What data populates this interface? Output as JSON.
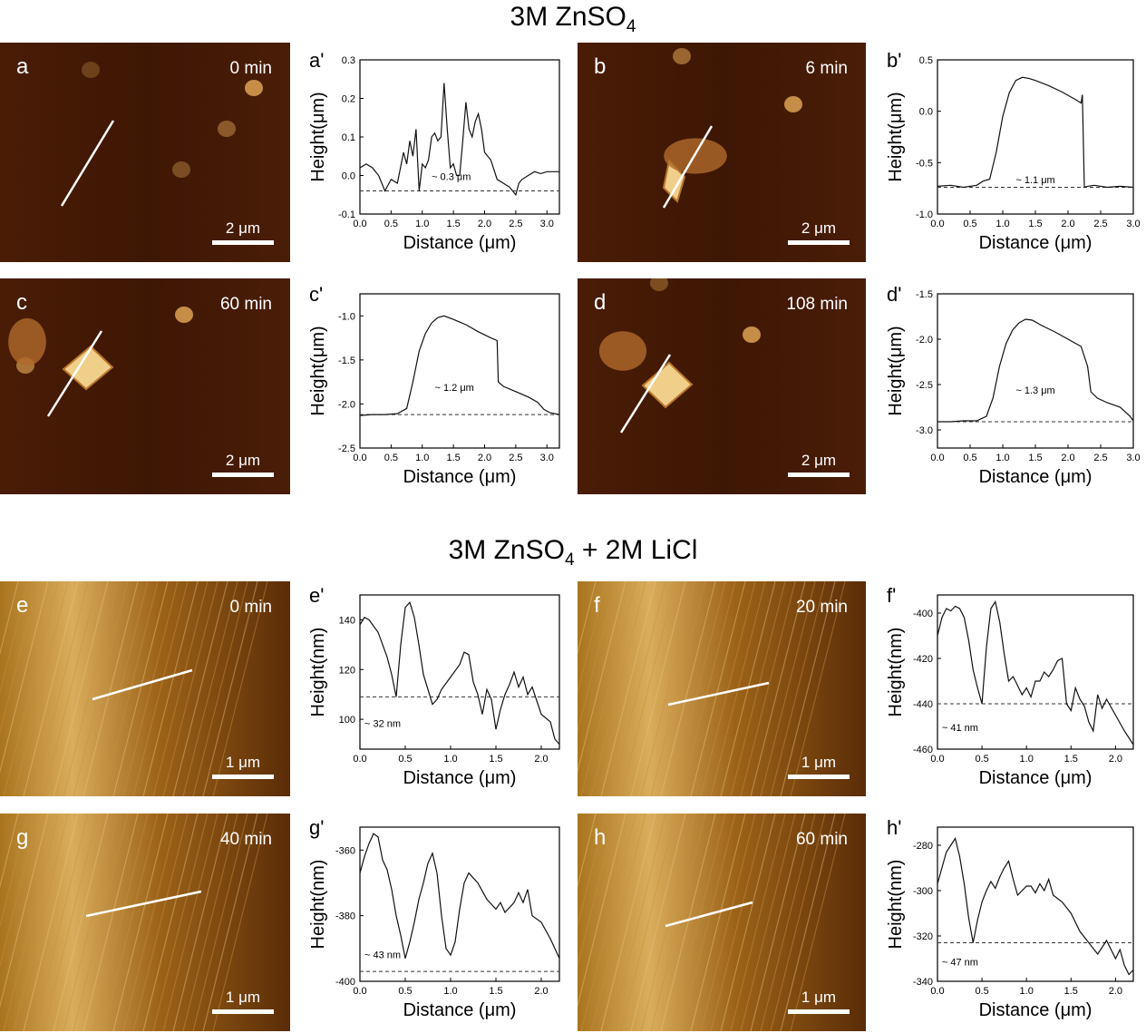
{
  "figure": {
    "sections": [
      {
        "title_main": "3M ZnSO",
        "title_sub": "4",
        "title_tail": ""
      },
      {
        "title_main": "3M ZnSO",
        "title_sub": "4",
        "title_tail": " + 2M LiCl"
      }
    ]
  },
  "afm_images": [
    {
      "id": "a",
      "letter": "a",
      "time": "0 min",
      "scale": "2 μm",
      "theme": "dark"
    },
    {
      "id": "b",
      "letter": "b",
      "time": "6 min",
      "scale": "2 μm",
      "theme": "dark"
    },
    {
      "id": "c",
      "letter": "c",
      "time": "60 min",
      "scale": "2 μm",
      "theme": "dark"
    },
    {
      "id": "d",
      "letter": "d",
      "time": "108 min",
      "scale": "2 μm",
      "theme": "dark"
    },
    {
      "id": "e",
      "letter": "e",
      "time": "0 min",
      "scale": "1 μm",
      "theme": "light"
    },
    {
      "id": "f",
      "letter": "f",
      "time": "20 min",
      "scale": "1 μm",
      "theme": "light"
    },
    {
      "id": "g",
      "letter": "g",
      "time": "40 min",
      "scale": "1 μm",
      "theme": "light"
    },
    {
      "id": "h",
      "letter": "h",
      "time": "60 min",
      "scale": "1 μm",
      "theme": "light"
    }
  ],
  "chart_data": [
    {
      "id": "a'",
      "type": "line",
      "panel_label": "a'",
      "xlabel": "Distance (μm)",
      "ylabel": "Height(μm)",
      "xlim": [
        0,
        3.2
      ],
      "ylim": [
        -0.1,
        0.3
      ],
      "xticks": [
        0.0,
        0.5,
        1.0,
        1.5,
        2.0,
        2.5,
        3.0
      ],
      "xticklabels": [
        "0.0",
        "0.5",
        "1.0",
        "1.5",
        "2.0",
        "2.5",
        "3.0"
      ],
      "yticks": [
        -0.1,
        0.0,
        0.1,
        0.2,
        0.3
      ],
      "yticklabels": [
        "-0.1",
        "0.0",
        "0.1",
        "0.2",
        "0.3"
      ],
      "reference_line": -0.04,
      "annotation": "~ 0.3 μm",
      "annotation_at": [
        1.15,
        -0.012
      ],
      "x": [
        0.0,
        0.1,
        0.2,
        0.3,
        0.35,
        0.4,
        0.5,
        0.6,
        0.7,
        0.75,
        0.8,
        0.85,
        0.9,
        0.95,
        1.0,
        1.05,
        1.1,
        1.15,
        1.2,
        1.25,
        1.3,
        1.35,
        1.4,
        1.45,
        1.5,
        1.55,
        1.6,
        1.65,
        1.7,
        1.75,
        1.8,
        1.85,
        1.9,
        1.95,
        2.0,
        2.1,
        2.2,
        2.3,
        2.4,
        2.5,
        2.55,
        2.6,
        2.7,
        2.8,
        2.9,
        3.0,
        3.1,
        3.2
      ],
      "y": [
        0.02,
        0.03,
        0.02,
        0.0,
        -0.02,
        -0.04,
        -0.01,
        -0.02,
        0.06,
        0.03,
        0.09,
        0.05,
        0.12,
        -0.04,
        0.03,
        0.02,
        0.04,
        0.1,
        0.11,
        0.09,
        0.1,
        0.24,
        0.12,
        0.02,
        0.03,
        0.0,
        0.0,
        0.09,
        0.19,
        0.12,
        0.1,
        0.14,
        0.16,
        0.12,
        0.06,
        0.04,
        -0.01,
        -0.02,
        -0.03,
        -0.05,
        -0.02,
        -0.01,
        0.0,
        0.01,
        0.005,
        0.01,
        0.01,
        0.01
      ]
    },
    {
      "id": "b'",
      "type": "line",
      "panel_label": "b'",
      "xlabel": "Distance (μm)",
      "ylabel": "Height(μm)",
      "xlim": [
        0,
        3.0
      ],
      "ylim": [
        -1.0,
        0.5
      ],
      "xticks": [
        0.0,
        0.5,
        1.0,
        1.5,
        2.0,
        2.5,
        3.0
      ],
      "xticklabels": [
        "0.0",
        "0.5",
        "1.0",
        "1.5",
        "2.0",
        "2.5",
        "3.0"
      ],
      "yticks": [
        -1.0,
        -0.5,
        0.0,
        0.5
      ],
      "yticklabels": [
        "-1.0",
        "-0.5",
        "0.0",
        "0.5"
      ],
      "reference_line": -0.74,
      "annotation": "~ 1.1 μm",
      "annotation_at": [
        1.2,
        -0.7
      ],
      "x": [
        0.0,
        0.2,
        0.4,
        0.6,
        0.7,
        0.8,
        0.9,
        1.0,
        1.1,
        1.2,
        1.3,
        1.4,
        1.5,
        1.7,
        1.9,
        2.1,
        2.2,
        2.22,
        2.25,
        2.3,
        2.4,
        2.6,
        2.8,
        3.0
      ],
      "y": [
        -0.73,
        -0.72,
        -0.74,
        -0.72,
        -0.68,
        -0.66,
        -0.4,
        -0.05,
        0.18,
        0.3,
        0.33,
        0.32,
        0.3,
        0.25,
        0.19,
        0.12,
        0.08,
        0.16,
        -0.74,
        -0.73,
        -0.72,
        -0.74,
        -0.73,
        -0.74
      ]
    },
    {
      "id": "c'",
      "type": "line",
      "panel_label": "c'",
      "xlabel": "Distance (μm)",
      "ylabel": "Height(μm)",
      "xlim": [
        0,
        3.2
      ],
      "ylim": [
        -2.5,
        -0.75
      ],
      "xticks": [
        0.0,
        0.5,
        1.0,
        1.5,
        2.0,
        2.5,
        3.0
      ],
      "xticklabels": [
        "0.0",
        "0.5",
        "1.0",
        "1.5",
        "2.0",
        "2.5",
        "3.0"
      ],
      "yticks": [
        -2.5,
        -2.0,
        -1.5,
        -1.0
      ],
      "yticklabels": [
        "-2.5",
        "-2.0",
        "-1.5",
        "-1.0"
      ],
      "reference_line": -2.12,
      "annotation": "~ 1.2 μm",
      "annotation_at": [
        1.2,
        -1.85
      ],
      "x": [
        0.0,
        0.2,
        0.4,
        0.6,
        0.75,
        0.85,
        0.95,
        1.05,
        1.15,
        1.25,
        1.35,
        1.5,
        1.7,
        1.9,
        2.1,
        2.2,
        2.22,
        2.3,
        2.5,
        2.7,
        2.85,
        2.95,
        3.05,
        3.2
      ],
      "y": [
        -2.13,
        -2.12,
        -2.12,
        -2.11,
        -2.05,
        -1.75,
        -1.4,
        -1.2,
        -1.08,
        -1.02,
        -1.0,
        -1.04,
        -1.1,
        -1.18,
        -1.25,
        -1.28,
        -1.75,
        -1.8,
        -1.86,
        -1.92,
        -1.98,
        -2.06,
        -2.1,
        -2.12
      ]
    },
    {
      "id": "d'",
      "type": "line",
      "panel_label": "d'",
      "xlabel": "Distance (μm)",
      "ylabel": "Height(μm)",
      "xlim": [
        0,
        3.0
      ],
      "ylim": [
        -3.2,
        -1.5
      ],
      "xticks": [
        0.0,
        0.5,
        1.0,
        1.5,
        2.0,
        2.5,
        3.0
      ],
      "xticklabels": [
        "0.0",
        "0.5",
        "1.0",
        "1.5",
        "2.0",
        "2.5",
        "3.0"
      ],
      "yticks": [
        -3.0,
        -2.5,
        -2.0,
        -1.5
      ],
      "yticklabels": [
        "-3.0",
        "-2.5",
        "-2.0",
        "-1.5"
      ],
      "reference_line": -2.91,
      "annotation": "~ 1.3 μm",
      "annotation_at": [
        1.2,
        -2.6
      ],
      "x": [
        0.0,
        0.2,
        0.4,
        0.6,
        0.75,
        0.85,
        0.95,
        1.05,
        1.15,
        1.25,
        1.35,
        1.45,
        1.6,
        1.8,
        2.0,
        2.2,
        2.3,
        2.35,
        2.45,
        2.6,
        2.8,
        2.95,
        3.0
      ],
      "y": [
        -2.91,
        -2.91,
        -2.9,
        -2.9,
        -2.85,
        -2.65,
        -2.3,
        -2.05,
        -1.9,
        -1.82,
        -1.78,
        -1.79,
        -1.85,
        -1.92,
        -2.0,
        -2.08,
        -2.3,
        -2.58,
        -2.65,
        -2.7,
        -2.75,
        -2.85,
        -2.9
      ]
    },
    {
      "id": "e'",
      "type": "line",
      "panel_label": "e'",
      "xlabel": "Distance (μm)",
      "ylabel": "Height(nm)",
      "xlim": [
        0,
        2.2
      ],
      "ylim": [
        88,
        150
      ],
      "xticks": [
        0.0,
        0.5,
        1.0,
        1.5,
        2.0
      ],
      "xticklabels": [
        "0.0",
        "0.5",
        "1.0",
        "1.5",
        "2.0"
      ],
      "yticks": [
        100,
        120,
        140
      ],
      "yticklabels": [
        "100",
        "120",
        "140"
      ],
      "reference_line": 109,
      "annotation": "~ 32 nm",
      "annotation_at": [
        0.05,
        97
      ],
      "x": [
        0.0,
        0.05,
        0.1,
        0.2,
        0.3,
        0.35,
        0.4,
        0.45,
        0.5,
        0.55,
        0.6,
        0.65,
        0.7,
        0.75,
        0.8,
        0.85,
        0.9,
        1.0,
        1.1,
        1.15,
        1.2,
        1.25,
        1.3,
        1.35,
        1.4,
        1.45,
        1.5,
        1.55,
        1.6,
        1.65,
        1.7,
        1.75,
        1.8,
        1.85,
        1.9,
        2.0,
        2.1,
        2.15,
        2.2
      ],
      "y": [
        138,
        141,
        140,
        135,
        125,
        118,
        109,
        130,
        145,
        147,
        141,
        130,
        118,
        112,
        106,
        108,
        112,
        117,
        122,
        127,
        126,
        115,
        110,
        102,
        112,
        108,
        96,
        104,
        110,
        114,
        119,
        113,
        117,
        110,
        113,
        102,
        99,
        92,
        90
      ]
    },
    {
      "id": "f'",
      "type": "line",
      "panel_label": "f'",
      "xlabel": "Distance (μm)",
      "ylabel": "Height(nm)",
      "xlim": [
        0,
        2.2
      ],
      "ylim": [
        -460,
        -392
      ],
      "xticks": [
        0.0,
        0.5,
        1.0,
        1.5,
        2.0
      ],
      "xticklabels": [
        "0.0",
        "0.5",
        "1.0",
        "1.5",
        "2.0"
      ],
      "yticks": [
        -460,
        -440,
        -420,
        -400
      ],
      "yticklabels": [
        "-460",
        "-440",
        "-420",
        "-400"
      ],
      "reference_line": -440,
      "annotation": "~ 41 nm",
      "annotation_at": [
        0.05,
        -452
      ],
      "x": [
        0.0,
        0.05,
        0.1,
        0.15,
        0.2,
        0.25,
        0.3,
        0.35,
        0.4,
        0.45,
        0.5,
        0.55,
        0.6,
        0.65,
        0.7,
        0.75,
        0.8,
        0.85,
        0.9,
        0.95,
        1.0,
        1.05,
        1.1,
        1.15,
        1.2,
        1.25,
        1.3,
        1.35,
        1.4,
        1.45,
        1.5,
        1.55,
        1.6,
        1.65,
        1.7,
        1.75,
        1.8,
        1.85,
        1.9,
        2.0,
        2.1,
        2.2
      ],
      "y": [
        -410,
        -402,
        -398,
        -399,
        -397,
        -398,
        -402,
        -412,
        -425,
        -433,
        -440,
        -415,
        -398,
        -395,
        -404,
        -418,
        -430,
        -428,
        -432,
        -436,
        -433,
        -437,
        -430,
        -430,
        -426,
        -428,
        -425,
        -421,
        -420,
        -440,
        -443,
        -433,
        -438,
        -441,
        -448,
        -452,
        -436,
        -442,
        -438,
        -445,
        -452,
        -458
      ]
    },
    {
      "id": "g'",
      "type": "line",
      "panel_label": "g'",
      "xlabel": "Distance (μm)",
      "ylabel": "Height(nm)",
      "xlim": [
        0,
        2.2
      ],
      "ylim": [
        -400,
        -353
      ],
      "xticks": [
        0.0,
        0.5,
        1.0,
        1.5,
        2.0
      ],
      "xticklabels": [
        "0.0",
        "0.5",
        "1.0",
        "1.5",
        "2.0"
      ],
      "yticks": [
        -400,
        -380,
        -360
      ],
      "yticklabels": [
        "-400",
        "-380",
        "-360"
      ],
      "reference_line": -397,
      "annotation": "~ 43 nm",
      "annotation_at": [
        0.05,
        -393
      ],
      "x": [
        0.0,
        0.05,
        0.1,
        0.15,
        0.2,
        0.25,
        0.3,
        0.35,
        0.4,
        0.45,
        0.5,
        0.55,
        0.6,
        0.65,
        0.7,
        0.75,
        0.8,
        0.85,
        0.9,
        0.95,
        1.0,
        1.05,
        1.1,
        1.15,
        1.2,
        1.3,
        1.4,
        1.5,
        1.55,
        1.6,
        1.7,
        1.75,
        1.8,
        1.85,
        1.9,
        2.0,
        2.1,
        2.2
      ],
      "y": [
        -367,
        -362,
        -358,
        -355,
        -356,
        -363,
        -366,
        -372,
        -380,
        -386,
        -393,
        -388,
        -382,
        -375,
        -370,
        -364,
        -361,
        -367,
        -380,
        -390,
        -392,
        -388,
        -378,
        -370,
        -367,
        -370,
        -375,
        -378,
        -376,
        -379,
        -376,
        -373,
        -376,
        -372,
        -380,
        -382,
        -387,
        -393
      ]
    },
    {
      "id": "h'",
      "type": "line",
      "panel_label": "h'",
      "xlabel": "Distance (μm)",
      "ylabel": "Height(nm)",
      "xlim": [
        0,
        2.2
      ],
      "ylim": [
        -340,
        -272
      ],
      "xticks": [
        0.0,
        0.5,
        1.0,
        1.5,
        2.0
      ],
      "xticklabels": [
        "0.0",
        "0.5",
        "1.0",
        "1.5",
        "2.0"
      ],
      "yticks": [
        -340,
        -320,
        -300,
        -280
      ],
      "yticklabels": [
        "-340",
        "-320",
        "-300",
        "-280"
      ],
      "reference_line": -323,
      "annotation": "~ 47 nm",
      "annotation_at": [
        0.05,
        -333
      ],
      "x": [
        0.0,
        0.05,
        0.1,
        0.15,
        0.2,
        0.25,
        0.3,
        0.35,
        0.4,
        0.45,
        0.5,
        0.55,
        0.6,
        0.65,
        0.7,
        0.75,
        0.8,
        0.85,
        0.9,
        0.95,
        1.0,
        1.05,
        1.1,
        1.15,
        1.2,
        1.25,
        1.3,
        1.4,
        1.5,
        1.6,
        1.7,
        1.8,
        1.9,
        2.0,
        2.05,
        2.1,
        2.15,
        2.2
      ],
      "y": [
        -297,
        -290,
        -283,
        -280,
        -277,
        -285,
        -297,
        -312,
        -323,
        -313,
        -305,
        -300,
        -296,
        -299,
        -294,
        -290,
        -287,
        -295,
        -302,
        -300,
        -298,
        -298,
        -301,
        -297,
        -300,
        -295,
        -302,
        -305,
        -310,
        -318,
        -323,
        -328,
        -322,
        -330,
        -326,
        -333,
        -337,
        -335
      ]
    }
  ]
}
